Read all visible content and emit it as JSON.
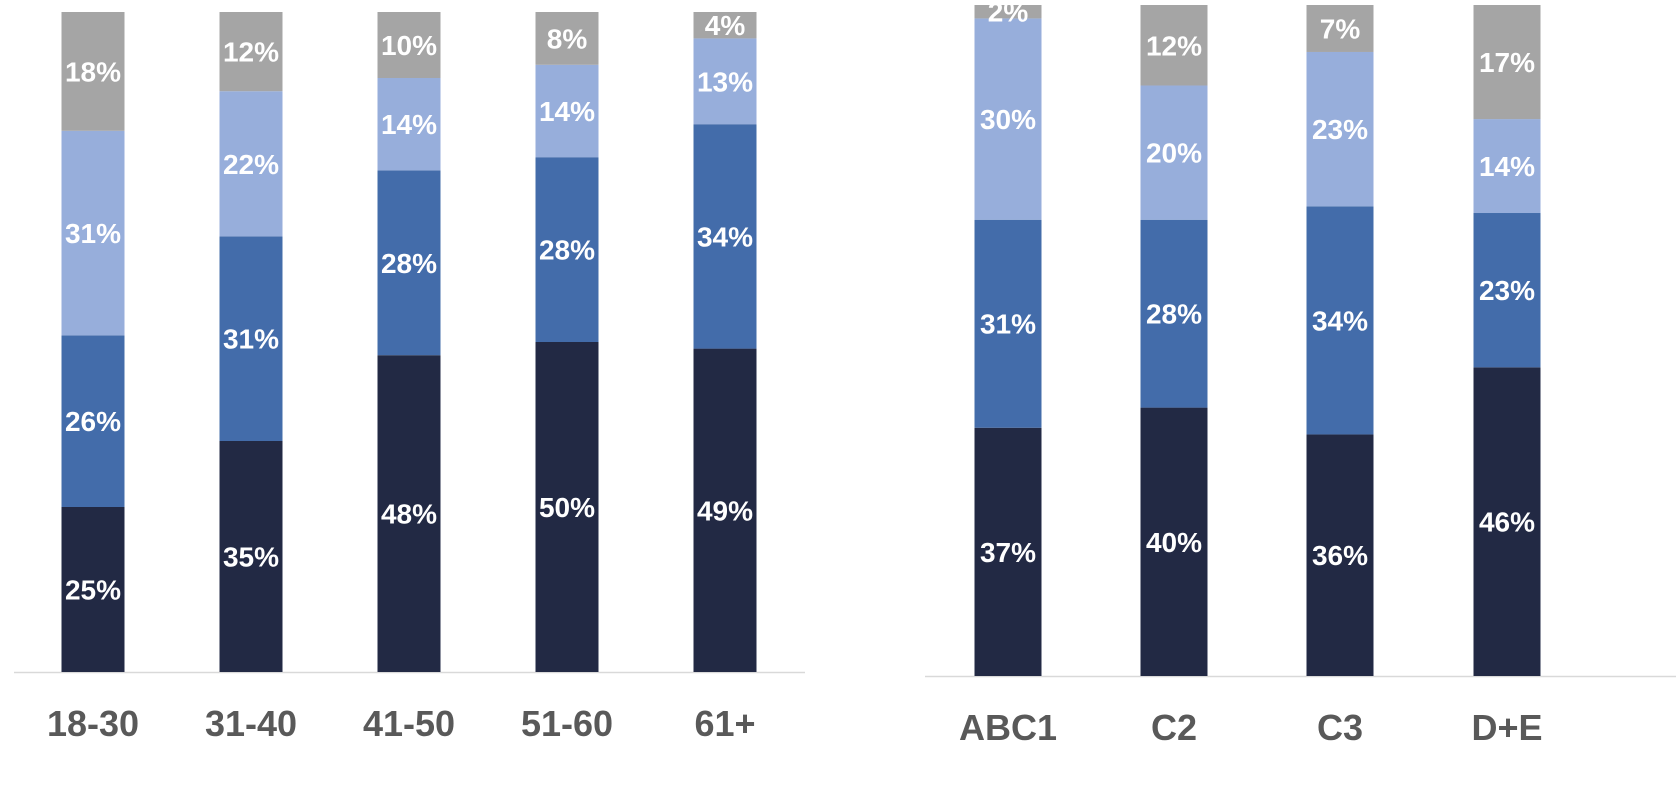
{
  "chart_data": [
    {
      "type": "bar",
      "stacked": true,
      "categories": [
        "18-30",
        "31-40",
        "41-50",
        "51-60",
        "61+"
      ],
      "ylim": [
        0,
        100
      ],
      "series": [
        {
          "values": [
            25,
            35,
            48,
            50,
            49
          ],
          "color": "#222944"
        },
        {
          "values": [
            26,
            31,
            28,
            28,
            34
          ],
          "color": "#436CAA"
        },
        {
          "values": [
            31,
            22,
            14,
            14,
            13
          ],
          "color": "#97AEDB"
        },
        {
          "values": [
            18,
            12,
            10,
            8,
            4
          ],
          "color": "#A5A5A5"
        }
      ],
      "labels": [
        [
          "25%",
          "35%",
          "48%",
          "50%",
          "49%"
        ],
        [
          "26%",
          "31%",
          "28%",
          "28%",
          "34%"
        ],
        [
          "31%",
          "22%",
          "14%",
          "14%",
          "13%"
        ],
        [
          "18%",
          "12%",
          "10%",
          "8%",
          "4%"
        ]
      ],
      "legend": "none",
      "grid": false
    },
    {
      "type": "bar",
      "stacked": true,
      "categories": [
        "ABC1",
        "C2",
        "C3",
        "D+E"
      ],
      "ylim": [
        0,
        100
      ],
      "series": [
        {
          "values": [
            37,
            40,
            36,
            46
          ],
          "color": "#222944"
        },
        {
          "values": [
            31,
            28,
            34,
            23
          ],
          "color": "#436CAA"
        },
        {
          "values": [
            30,
            20,
            23,
            14
          ],
          "color": "#97AEDB"
        },
        {
          "values": [
            2,
            12,
            7,
            17
          ],
          "color": "#A5A5A5"
        }
      ],
      "labels": [
        [
          "37%",
          "40%",
          "36%",
          "46%"
        ],
        [
          "31%",
          "28%",
          "34%",
          "23%"
        ],
        [
          "30%",
          "20%",
          "23%",
          "14%"
        ],
        [
          "2%",
          "12%",
          "7%",
          "17%"
        ]
      ],
      "legend": "none",
      "grid": false
    }
  ]
}
